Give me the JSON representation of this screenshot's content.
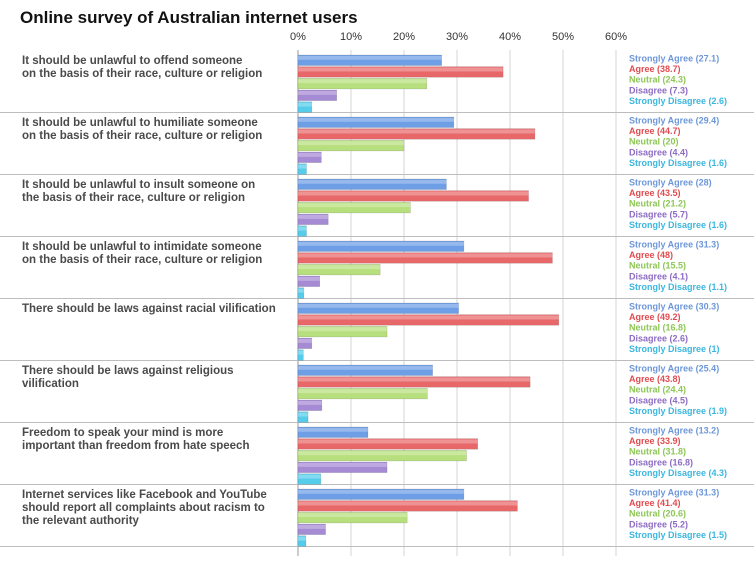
{
  "chart_data": {
    "type": "bar",
    "orientation": "horizontal",
    "title": "Online survey of Australian internet users",
    "xlim": [
      0,
      60
    ],
    "x_ticks": [
      "0%",
      "10%",
      "20%",
      "30%",
      "40%",
      "50%",
      "60%"
    ],
    "tick_position": "top",
    "grid": true,
    "legend_placement": "right of each group",
    "series_names": [
      "Strongly Agree",
      "Agree",
      "Neutral",
      "Disagree",
      "Strongly Disagree"
    ],
    "series_colors": [
      "#6e9ee6",
      "#e8686a",
      "#b7df7d",
      "#a58ad4",
      "#55ccea"
    ],
    "legend_text_colors": [
      "#6d97d8",
      "#e24b4f",
      "#8ec756",
      "#8d6bc4",
      "#3bb7df"
    ],
    "groups": [
      {
        "lines": [
          "It should be unlawful to offend someone",
          "on the basis of their race, culture or religion"
        ],
        "values": [
          27.1,
          38.7,
          24.3,
          7.3,
          2.6
        ],
        "legend": [
          "Strongly Agree (27.1)",
          "Agree (38.7)",
          "Neutral (24.3)",
          "Disagree (7.3)",
          "Strongly Disagree (2.6)"
        ]
      },
      {
        "lines": [
          "It should be unlawful to humiliate someone",
          "on the basis of their race, culture or religion"
        ],
        "values": [
          29.4,
          44.7,
          20,
          4.4,
          1.6
        ],
        "legend": [
          "Strongly Agree (29.4)",
          "Agree (44.7)",
          "Neutral (20)",
          "Disagree (4.4)",
          "Strongly Disagree (1.6)"
        ]
      },
      {
        "lines": [
          "It should be unlawful to insult someone on",
          "the basis of their race, culture or religion"
        ],
        "values": [
          28,
          43.5,
          21.2,
          5.7,
          1.6
        ],
        "legend": [
          "Strongly Agree (28)",
          "Agree (43.5)",
          "Neutral (21.2)",
          "Disagree (5.7)",
          "Strongly Disagree (1.6)"
        ]
      },
      {
        "lines": [
          "It should be unlawful to intimidate someone",
          "on the basis of their race, culture or religion"
        ],
        "values": [
          31.3,
          48,
          15.5,
          4.1,
          1.1
        ],
        "legend": [
          "Strongly Agree (31.3)",
          "Agree (48)",
          "Neutral (15.5)",
          "Disagree (4.1)",
          "Strongly Disagree (1.1)"
        ]
      },
      {
        "lines": [
          "There should be laws against racial vilification"
        ],
        "values": [
          30.3,
          49.2,
          16.8,
          2.6,
          1
        ],
        "legend": [
          "Strongly Agree (30.3)",
          "Agree (49.2)",
          "Neutral (16.8)",
          "Disagree (2.6)",
          "Strongly Disagree (1)"
        ]
      },
      {
        "lines": [
          "There should be laws against religious",
          "vilification"
        ],
        "values": [
          25.4,
          43.8,
          24.4,
          4.5,
          1.9
        ],
        "legend": [
          "Strongly Agree (25.4)",
          "Agree (43.8)",
          "Neutral (24.4)",
          "Disagree (4.5)",
          "Strongly Disagree (1.9)"
        ]
      },
      {
        "lines": [
          "Freedom to speak your mind is more",
          "important than freedom from hate speech"
        ],
        "values": [
          13.2,
          33.9,
          31.8,
          16.8,
          4.3
        ],
        "legend": [
          "Strongly Agree (13.2)",
          "Agree (33.9)",
          "Neutral (31.8)",
          "Disagree (16.8)",
          "Strongly Disagree (4.3)"
        ]
      },
      {
        "lines": [
          "Internet services like Facebook and YouTube",
          "should report all complaints about racism to",
          "the relevant authority"
        ],
        "values": [
          31.3,
          41.4,
          20.6,
          5.2,
          1.5
        ],
        "legend": [
          "Strongly Agree (31.3)",
          "Agree (41.4)",
          "Neutral (20.6)",
          "Disagree (5.2)",
          "Strongly Disagree (1.5)"
        ]
      }
    ]
  }
}
